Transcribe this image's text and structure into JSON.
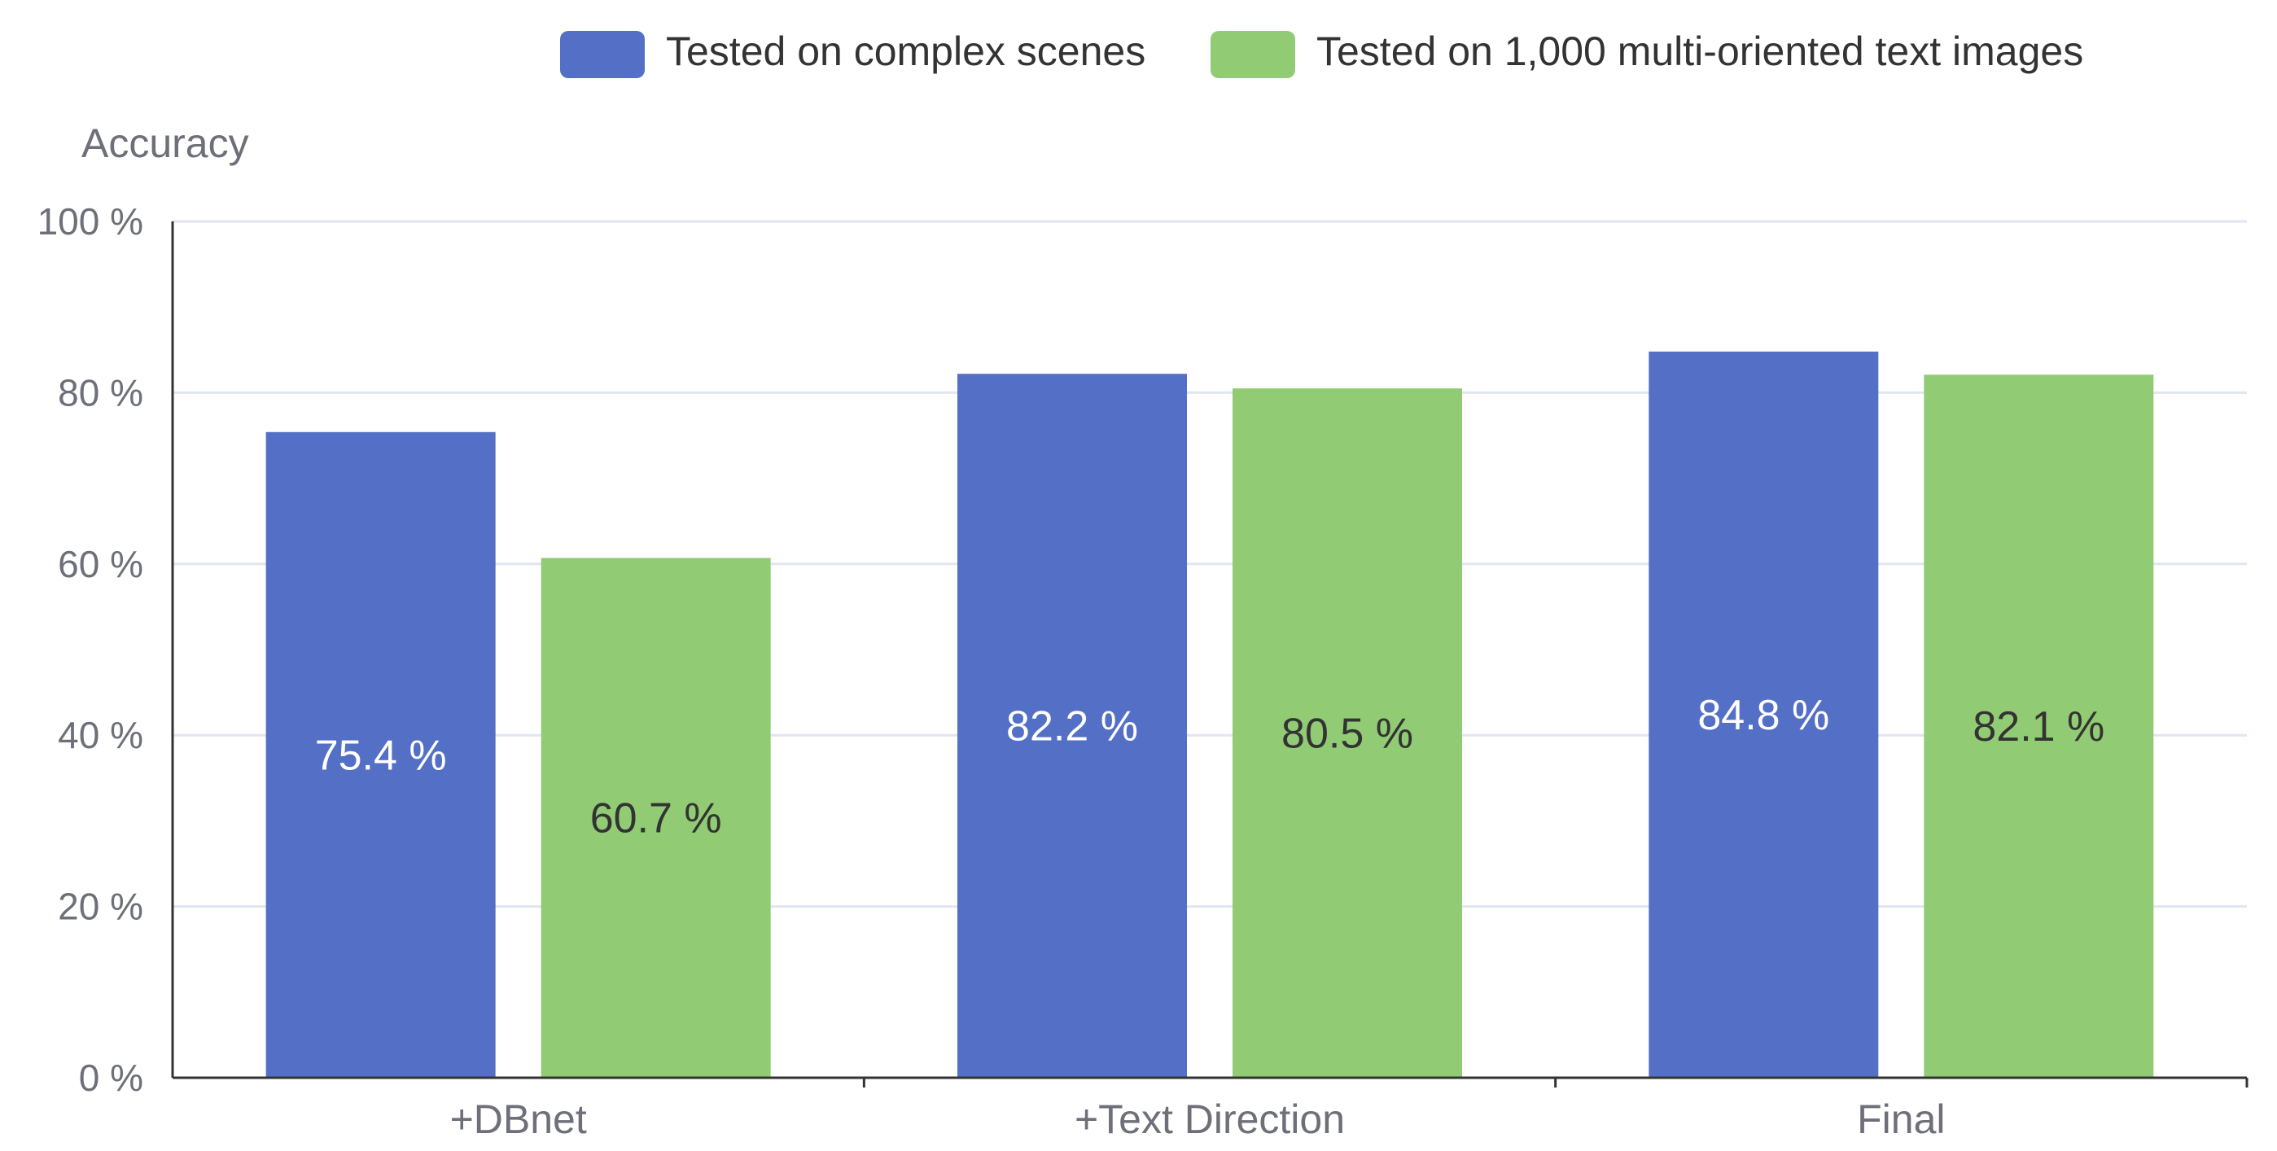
{
  "chart_data": {
    "type": "bar",
    "categories": [
      "+DBnet",
      "+Text Direction",
      "Final"
    ],
    "series": [
      {
        "name": "Tested on complex scenes",
        "color": "#5470c6",
        "label_color": "#ffffff",
        "values": [
          75.4,
          82.2,
          84.8
        ]
      },
      {
        "name": "Tested on 1,000 multi-oriented text images",
        "color": "#91cc75",
        "label_color": "#333333",
        "values": [
          60.7,
          80.5,
          82.1
        ]
      }
    ],
    "value_labels": [
      [
        "75.4 %",
        "82.2 %",
        "84.8 %"
      ],
      [
        "60.7 %",
        "80.5 %",
        "82.1 %"
      ]
    ],
    "ylabel": "Accuracy",
    "ylim": [
      0,
      100
    ],
    "yticks": [
      0,
      20,
      40,
      60,
      80,
      100
    ],
    "ytick_labels": [
      "0 %",
      "20 %",
      "40 %",
      "60 %",
      "80 %",
      "100 %"
    ],
    "grid": true,
    "legend_position": "top-right",
    "axis_color": "#333333",
    "grid_color": "#e0e6f1"
  }
}
